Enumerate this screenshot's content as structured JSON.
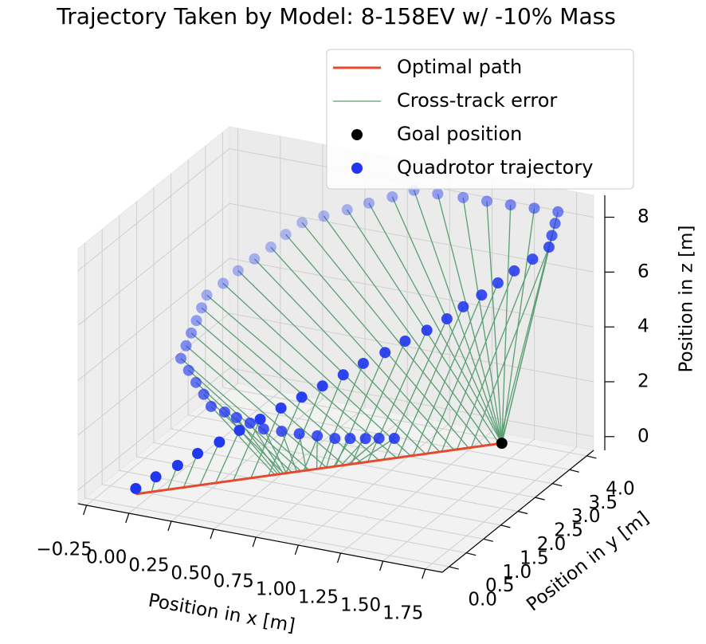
{
  "chart_data": {
    "type": "scatter3d",
    "title": "Trajectory Taken by Model: 8-158EV w/ -10% Mass",
    "xlabel": "Position in x [m]",
    "ylabel": "Position in y [m]",
    "zlabel": "Position in z [m]",
    "xlim": [
      -0.3,
      1.85
    ],
    "ylim": [
      -0.2,
      4.2
    ],
    "zlim": [
      -0.5,
      8.8
    ],
    "xticks": [
      {
        "value": -0.25,
        "label": "−0.25"
      },
      {
        "value": 0,
        "label": "0.00"
      },
      {
        "value": 0.25,
        "label": "0.25"
      },
      {
        "value": 0.5,
        "label": "0.50"
      },
      {
        "value": 0.75,
        "label": "0.75"
      },
      {
        "value": 1,
        "label": "1.00"
      },
      {
        "value": 1.25,
        "label": "1.25"
      },
      {
        "value": 1.5,
        "label": "1.50"
      },
      {
        "value": 1.75,
        "label": "1.75"
      }
    ],
    "yticks": [
      {
        "value": 0,
        "label": "0.0"
      },
      {
        "value": 0.5,
        "label": "0.5"
      },
      {
        "value": 1,
        "label": "1.0"
      },
      {
        "value": 1.5,
        "label": "1.5"
      },
      {
        "value": 2,
        "label": "2.0"
      },
      {
        "value": 2.5,
        "label": "2.5"
      },
      {
        "value": 3,
        "label": "3.0"
      },
      {
        "value": 3.5,
        "label": "3.5"
      },
      {
        "value": 4,
        "label": "4.0"
      }
    ],
    "zticks": [
      0,
      2,
      4,
      6,
      8
    ],
    "grid": true,
    "legend": "upper right",
    "series": [
      {
        "name": "Optimal path",
        "type": "line",
        "color": "#e34a2e",
        "x": [
          0,
          1.45
        ],
        "y": [
          0,
          3.5
        ],
        "z": [
          0,
          0
        ]
      },
      {
        "name": "Cross-track error",
        "type": "error-lines",
        "color": "#5a9e72"
      },
      {
        "name": "Goal position",
        "type": "point",
        "color": "#000000",
        "x": [
          1.45
        ],
        "y": [
          3.5
        ],
        "z": [
          0
        ]
      },
      {
        "name": "Quadrotor trajectory",
        "type": "scatter",
        "color": "#1f35f0",
        "x": [
          0,
          0.09,
          0.19,
          0.28,
          0.38,
          0.47,
          0.56,
          0.65,
          0.74,
          0.83,
          0.92,
          1.01,
          1.11,
          1.2,
          1.3,
          1.39,
          1.46,
          1.54,
          1.61,
          1.68,
          1.76,
          1.83,
          1.78,
          1.73,
          1.68,
          1.54,
          1.4,
          1.26,
          1.12,
          0.97,
          0.83,
          0.71,
          0.58,
          0.46,
          0.33,
          0.21,
          0.14,
          0.08,
          0.01,
          -0.06,
          -0.12,
          -0.19,
          -0.18,
          -0.17,
          -0.16,
          -0.15,
          -0.14,
          -0.07,
          0,
          0.07,
          0.14,
          0.22,
          0.29,
          0.37,
          0.45,
          0.54,
          0.63,
          0.72,
          0.81,
          0.89,
          0.97,
          1.04,
          1.12
        ],
        "y": [
          0,
          0.14,
          0.28,
          0.42,
          0.56,
          0.7,
          0.86,
          1.02,
          1.18,
          1.34,
          1.5,
          1.64,
          1.78,
          1.92,
          2.06,
          2.2,
          2.33,
          2.47,
          2.6,
          2.73,
          2.87,
          3,
          3.33,
          3.67,
          4,
          4,
          4,
          4,
          4,
          4,
          4,
          3.96,
          3.92,
          3.88,
          3.84,
          3.8,
          3.67,
          3.53,
          3.4,
          3.27,
          3.13,
          3,
          2.8,
          2.6,
          2.4,
          2.2,
          2,
          1.88,
          1.75,
          1.63,
          1.5,
          1.5,
          1.5,
          1.5,
          1.5,
          1.58,
          1.65,
          1.73,
          1.8,
          1.85,
          1.9,
          1.95,
          2
        ],
        "z": [
          0.2,
          0.59,
          0.98,
          1.38,
          1.77,
          2.16,
          2.51,
          2.86,
          3.2,
          3.55,
          3.9,
          4.28,
          4.65,
          5.03,
          5.4,
          5.78,
          6.17,
          6.55,
          6.94,
          7.33,
          7.71,
          8.1,
          8.13,
          8.17,
          8.2,
          8.17,
          8.13,
          8.1,
          8.07,
          8.03,
          8,
          7.66,
          7.32,
          6.98,
          6.64,
          6.3,
          5.92,
          5.53,
          5.15,
          4.77,
          4.38,
          4,
          3.75,
          3.5,
          3.26,
          3.01,
          2.76,
          2.53,
          2.3,
          2.07,
          1.84,
          1.73,
          1.61,
          1.5,
          1.38,
          1.32,
          1.26,
          1.21,
          1.15,
          1.19,
          1.23,
          1.27,
          1.31
        ]
      }
    ]
  }
}
